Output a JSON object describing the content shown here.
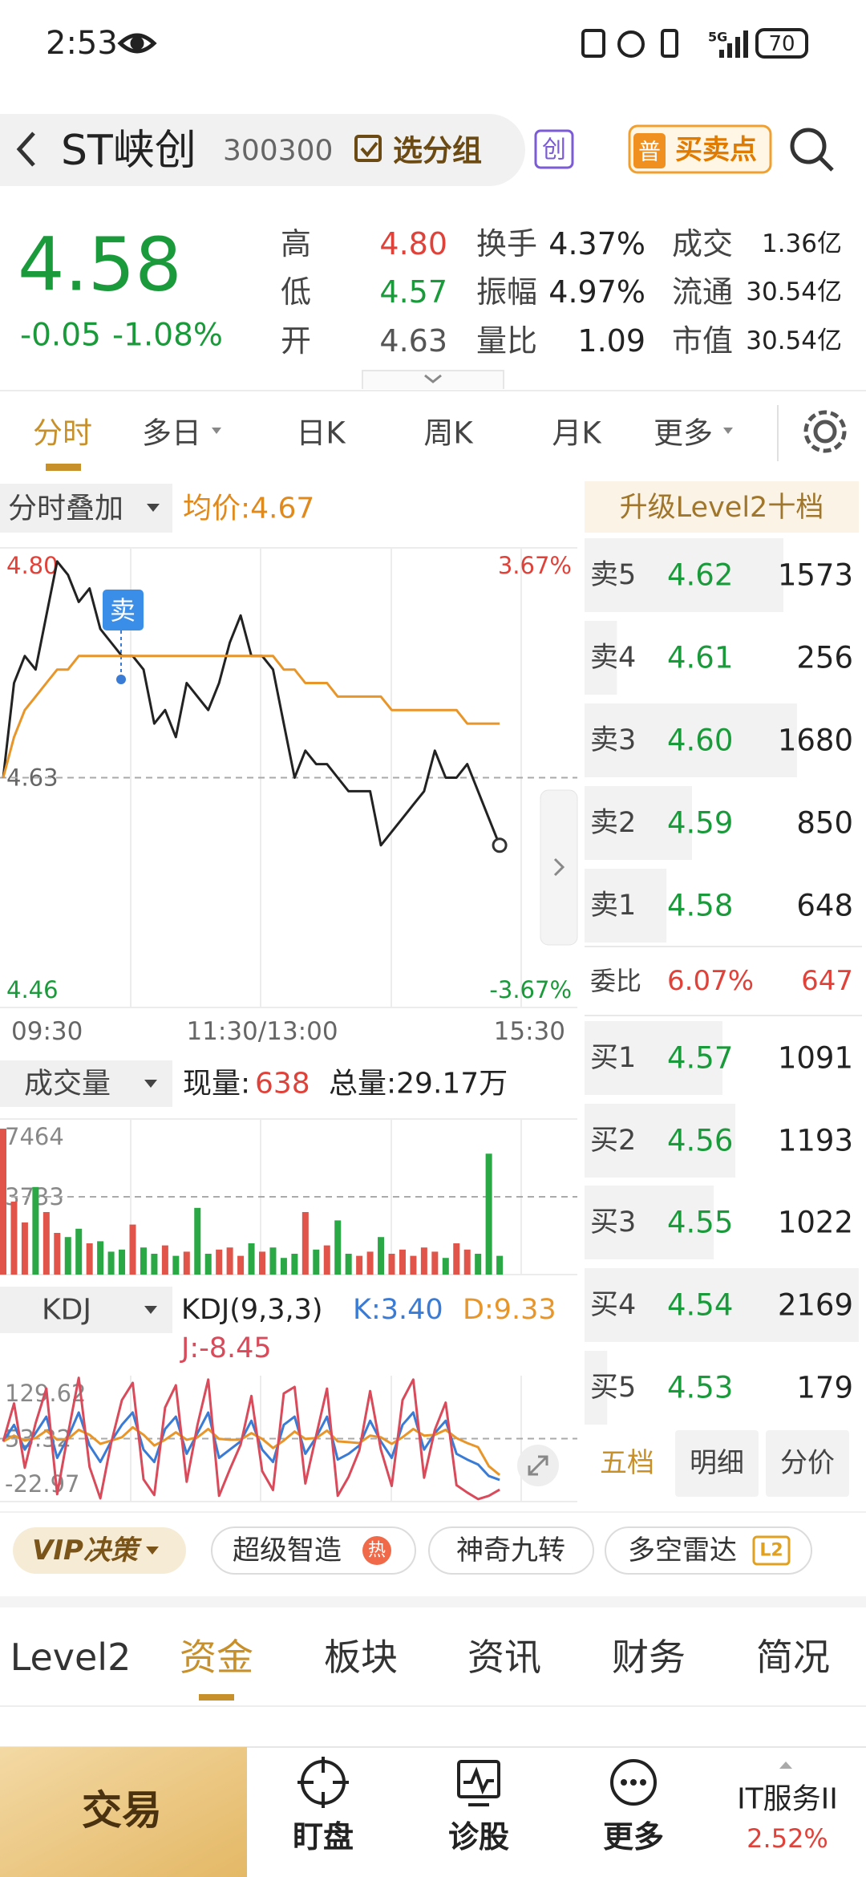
{
  "status_bar": {
    "time": "2:53",
    "signal": "5G",
    "battery": "70"
  },
  "header": {
    "name": "ST峡创",
    "code": "300300",
    "group_button": "选分组",
    "board_badge": "创",
    "signal_badge": "普",
    "signal_button": "买卖点"
  },
  "quote": {
    "price": "4.58",
    "change": "-0.05",
    "change_pct": "-1.08%",
    "stats": [
      [
        [
          "高",
          "4.80"
        ],
        [
          "换手",
          "4.37%"
        ],
        [
          "成交",
          "1.36亿"
        ]
      ],
      [
        [
          "低",
          "4.57"
        ],
        [
          "振幅",
          "4.97%"
        ],
        [
          "流通",
          "30.54亿"
        ]
      ],
      [
        [
          "开",
          "4.63"
        ],
        [
          "量比",
          "1.09"
        ],
        [
          "市值",
          "30.54亿"
        ]
      ]
    ]
  },
  "chart_tabs": [
    "分时",
    "多日",
    "日K",
    "周K",
    "月K",
    "更多"
  ],
  "intraday": {
    "type": "line",
    "overlay_button": "分时叠加",
    "avg_text": "均价:4.67",
    "trade_marker": "卖",
    "categories": [
      "09:30",
      null,
      null,
      null,
      null,
      null,
      null,
      null,
      null,
      null,
      null,
      null,
      null,
      null,
      null,
      null,
      null,
      null,
      null,
      null,
      null,
      null,
      null,
      null,
      "11:30/13:00",
      null,
      null,
      null,
      null,
      null,
      null,
      null,
      null,
      null,
      null,
      null,
      null,
      null,
      null,
      null,
      null,
      null,
      null,
      null,
      null,
      null,
      null,
      null,
      "15:30"
    ],
    "series": [
      {
        "color": "#222222",
        "values": [
          4.63,
          4.7,
          4.72,
          4.71,
          4.75,
          4.79,
          4.78,
          4.76,
          4.77,
          4.74,
          4.73,
          4.72,
          4.72,
          4.71,
          4.67,
          4.68,
          4.66,
          4.7,
          4.69,
          4.68,
          4.7,
          4.73,
          4.75,
          4.72,
          4.72,
          4.71,
          4.67,
          4.63,
          4.65,
          4.64,
          4.64,
          4.63,
          4.62,
          4.62,
          4.62,
          4.58,
          4.59,
          4.6,
          4.61,
          4.62,
          4.65,
          4.63,
          4.63,
          4.64,
          4.62,
          4.6,
          4.58,
          null,
          null
        ]
      },
      {
        "color": "#e8962a",
        "values": [
          4.63,
          4.66,
          4.68,
          4.69,
          4.7,
          4.71,
          4.71,
          4.72,
          4.72,
          4.72,
          4.72,
          4.72,
          4.72,
          4.72,
          4.72,
          4.72,
          4.72,
          4.72,
          4.72,
          4.72,
          4.72,
          4.72,
          4.72,
          4.72,
          4.72,
          4.72,
          4.71,
          4.71,
          4.7,
          4.7,
          4.7,
          4.69,
          4.69,
          4.69,
          4.69,
          4.69,
          4.68,
          4.68,
          4.68,
          4.68,
          4.68,
          4.68,
          4.68,
          4.67,
          4.67,
          4.67,
          4.67,
          null,
          null
        ]
      }
    ],
    "ylim": [
      4.46,
      4.8
    ],
    "yticks": [
      4.46,
      4.63,
      {
        "value": 4.8,
        "label": "4.80"
      }
    ],
    "y2lim": [
      -3.67,
      3.67
    ],
    "y2ticks": [
      {
        "value": -3.67,
        "label": "-3.67%"
      },
      {
        "value": 3.67,
        "label": "3.67%"
      }
    ]
  },
  "volume": {
    "type": "bar",
    "title": "成交量",
    "current_label": "现量:",
    "current_value": "638",
    "total_text": "总量:29.17万",
    "up_color": "#e0544a",
    "down_color": "#2aa845",
    "values": [
      7000,
      3500,
      2500,
      4200,
      3000,
      2000,
      1800,
      2200,
      1500,
      1600,
      1100,
      1200,
      2400,
      1300,
      1000,
      1400,
      900,
      1100,
      3200,
      1000,
      1200,
      1300,
      900,
      1500,
      1100,
      1300,
      800,
      1000,
      3000,
      1200,
      1400,
      2600,
      1000,
      900,
      1100,
      1800,
      1000,
      1200,
      900,
      1300,
      1100,
      800,
      1500,
      1200,
      1000,
      5800,
      900,
      null,
      null
    ],
    "ylim": [
      0,
      7464
    ],
    "yticks": [
      3733,
      7464
    ]
  },
  "kdj": {
    "type": "line",
    "title": "KDJ",
    "params": "KDJ(9,3,3)",
    "k_text": "K:3.40",
    "d_text": "D:9.33",
    "j_text": "J:-8.45",
    "series": [
      {
        "color": "#3a7bd5",
        "values": [
          50,
          70,
          40,
          60,
          80,
          30,
          55,
          85,
          45,
          25,
          50,
          70,
          85,
          40,
          25,
          65,
          80,
          35,
          60,
          85,
          30,
          40,
          50,
          75,
          40,
          25,
          70,
          80,
          35,
          55,
          80,
          28,
          35,
          45,
          75,
          50,
          30,
          70,
          85,
          40,
          60,
          75,
          35,
          28,
          22,
          8,
          3.4,
          null,
          null
        ]
      },
      {
        "color": "#e8962a",
        "values": [
          50,
          57,
          51,
          54,
          63,
          52,
          53,
          64,
          58,
          47,
          51,
          55,
          67,
          58,
          45,
          52,
          61,
          52,
          55,
          65,
          53,
          52,
          52,
          60,
          53,
          42,
          51,
          62,
          53,
          54,
          63,
          50,
          49,
          48,
          57,
          55,
          47,
          55,
          65,
          57,
          58,
          64,
          54,
          48,
          43,
          20,
          9.33,
          null,
          null
        ]
      },
      {
        "color": "#d94a5a",
        "values": [
          50,
          96,
          18,
          72,
          114,
          -14,
          59,
          127,
          19,
          -19,
          48,
          100,
          121,
          4,
          -15,
          91,
          118,
          1,
          70,
          125,
          -16,
          16,
          46,
          105,
          14,
          -9,
          108,
          116,
          -1,
          57,
          114,
          -16,
          7,
          39,
          111,
          40,
          -4,
          100,
          125,
          6,
          64,
          97,
          -3,
          -12,
          -20,
          -16,
          -8.45,
          null,
          null
        ]
      }
    ],
    "ylim": [
      -22.97,
      129.62
    ],
    "yticks": [
      -22.97,
      53.32,
      129.62
    ]
  },
  "order_book": {
    "title": "升级Level2十档",
    "asks": [
      {
        "label": "卖5",
        "price": "4.62",
        "volume": 1573
      },
      {
        "label": "卖4",
        "price": "4.61",
        "volume": 256
      },
      {
        "label": "卖3",
        "price": "4.60",
        "volume": 1680
      },
      {
        "label": "卖2",
        "price": "4.59",
        "volume": 850
      },
      {
        "label": "卖1",
        "price": "4.58",
        "volume": 648
      }
    ],
    "ratio": {
      "label": "委比",
      "value": "6.07%",
      "diff": "647"
    },
    "bids": [
      {
        "label": "买1",
        "price": "4.57",
        "volume": 1091
      },
      {
        "label": "买2",
        "price": "4.56",
        "volume": 1193
      },
      {
        "label": "买3",
        "price": "4.55",
        "volume": 1022
      },
      {
        "label": "买4",
        "price": "4.54",
        "volume": 2169
      },
      {
        "label": "买5",
        "price": "4.53",
        "volume": 179
      }
    ],
    "tabs": [
      "五档",
      "明细",
      "分价"
    ]
  },
  "feature_chips": [
    "VIP决策",
    "超级智造",
    "神奇九转",
    "多空雷达"
  ],
  "chip_badges": [
    "热",
    "L2"
  ],
  "section_tabs": [
    "Level2",
    "资金",
    "板块",
    "资讯",
    "财务",
    "简况"
  ],
  "bottom_nav": {
    "trade": "交易",
    "items": [
      "盯盘",
      "诊股",
      "更多"
    ],
    "index_name": "IT服务II",
    "index_change": "2.52%"
  }
}
